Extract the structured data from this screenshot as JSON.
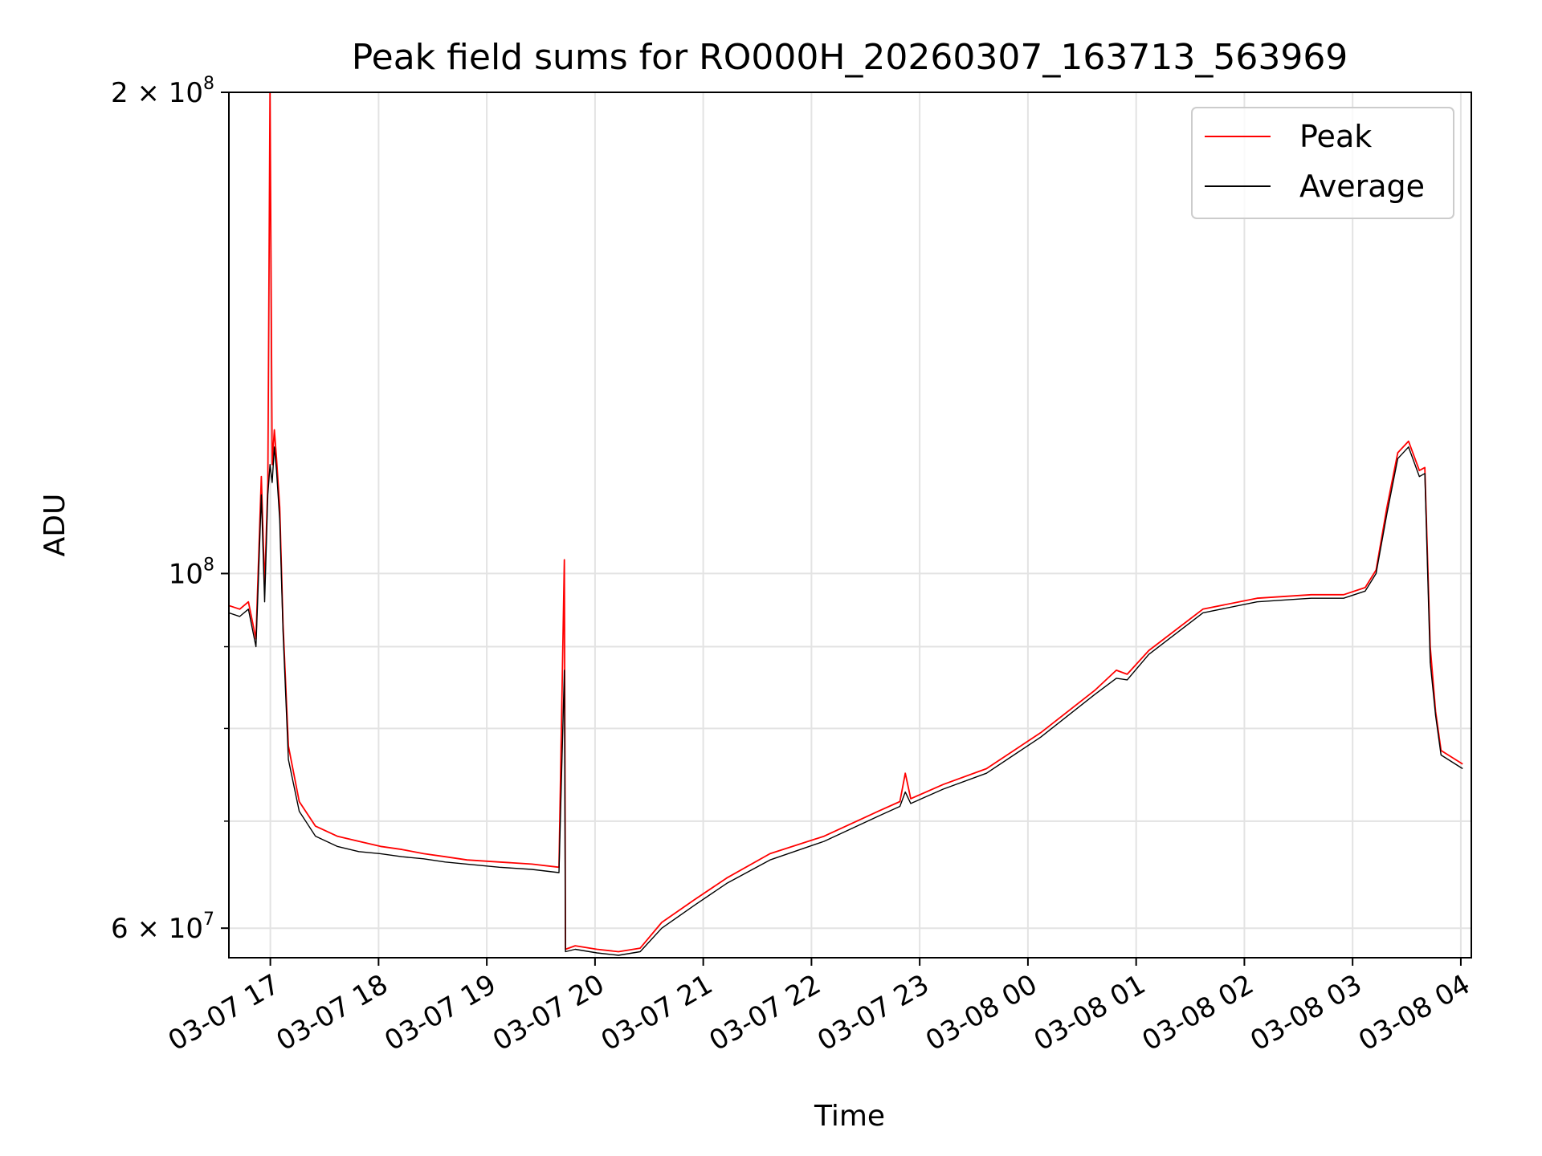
{
  "chart_data": {
    "type": "line",
    "title": "Peak field sums for RO000H_20260307_163713_563969",
    "xlabel": "Time",
    "ylabel": "ADU",
    "yscale": "log",
    "ylim": [
      57500000,
      200000000
    ],
    "xlim": [
      "2026-03-07 16:37",
      "2026-03-08 04:05"
    ],
    "grid": true,
    "legend_position": "top-right",
    "x_ticks": [
      {
        "label": "03-07 17",
        "hours": 0.383
      },
      {
        "label": "03-07 18",
        "hours": 1.383
      },
      {
        "label": "03-07 19",
        "hours": 2.383
      },
      {
        "label": "03-07 20",
        "hours": 3.383
      },
      {
        "label": "03-07 21",
        "hours": 4.383
      },
      {
        "label": "03-07 22",
        "hours": 5.383
      },
      {
        "label": "03-07 23",
        "hours": 6.383
      },
      {
        "label": "03-08 00",
        "hours": 7.383
      },
      {
        "label": "03-08 01",
        "hours": 8.383
      },
      {
        "label": "03-08 02",
        "hours": 9.383
      },
      {
        "label": "03-08 03",
        "hours": 10.383
      },
      {
        "label": "03-08 04",
        "hours": 11.383
      }
    ],
    "y_ticks": [
      {
        "base": "2 × 10",
        "exp": "8",
        "value": 200000000
      },
      {
        "base": "10",
        "exp": "8",
        "value": 100000000
      },
      {
        "base": "6 × 10",
        "exp": "7",
        "value": 60000000
      }
    ],
    "y_minor_ticks": [
      70000000,
      80000000,
      90000000
    ],
    "x_unit": "hours since 2026-03-07 16:37:13",
    "series": [
      {
        "name": "Peak",
        "color": "#ff0000",
        "x": [
          0.0,
          0.1,
          0.18,
          0.25,
          0.27,
          0.3,
          0.33,
          0.36,
          0.38,
          0.4,
          0.42,
          0.44,
          0.47,
          0.5,
          0.55,
          0.65,
          0.8,
          1.0,
          1.2,
          1.4,
          1.6,
          1.8,
          2.0,
          2.2,
          2.5,
          2.8,
          3.05,
          3.1,
          3.11,
          3.2,
          3.4,
          3.6,
          3.8,
          4.0,
          4.3,
          4.6,
          5.0,
          5.5,
          6.0,
          6.2,
          6.25,
          6.3,
          6.6,
          7.0,
          7.5,
          8.0,
          8.2,
          8.3,
          8.5,
          9.0,
          9.5,
          10.0,
          10.3,
          10.5,
          10.6,
          10.7,
          10.8,
          10.9,
          11.0,
          11.05,
          11.1,
          11.15,
          11.2,
          11.4
        ],
        "y": [
          95500000,
          95000000,
          96000000,
          91000000,
          100000000,
          115000000,
          98000000,
          114000000,
          200000000,
          117000000,
          123000000,
          118000000,
          110000000,
          93000000,
          78000000,
          72000000,
          69500000,
          68500000,
          68000000,
          67500000,
          67200000,
          66800000,
          66500000,
          66200000,
          66000000,
          65800000,
          65500000,
          102000000,
          58200000,
          58500000,
          58200000,
          58000000,
          58300000,
          60500000,
          62500000,
          64500000,
          66800000,
          68500000,
          71000000,
          72000000,
          75000000,
          72300000,
          73800000,
          75500000,
          79500000,
          84500000,
          87000000,
          86500000,
          89500000,
          95000000,
          96500000,
          97000000,
          97000000,
          98000000,
          100500000,
          110000000,
          119000000,
          121000000,
          116000000,
          116500000,
          90000000,
          82000000,
          77500000,
          76000000
        ]
      },
      {
        "name": "Average",
        "color": "#000000",
        "x": [
          0.0,
          0.1,
          0.18,
          0.25,
          0.27,
          0.3,
          0.33,
          0.36,
          0.38,
          0.4,
          0.42,
          0.44,
          0.47,
          0.5,
          0.55,
          0.65,
          0.8,
          1.0,
          1.2,
          1.4,
          1.6,
          1.8,
          2.0,
          2.2,
          2.5,
          2.8,
          3.05,
          3.1,
          3.11,
          3.2,
          3.4,
          3.6,
          3.8,
          4.0,
          4.3,
          4.6,
          5.0,
          5.5,
          6.0,
          6.2,
          6.25,
          6.3,
          6.6,
          7.0,
          7.5,
          8.0,
          8.2,
          8.3,
          8.5,
          9.0,
          9.5,
          10.0,
          10.3,
          10.5,
          10.6,
          10.7,
          10.8,
          10.9,
          11.0,
          11.05,
          11.1,
          11.15,
          11.2,
          11.4
        ],
        "y": [
          94500000,
          94000000,
          95000000,
          90000000,
          98000000,
          112000000,
          96000000,
          112000000,
          117000000,
          114000000,
          120000000,
          116000000,
          108000000,
          92000000,
          76500000,
          71000000,
          68500000,
          67500000,
          67000000,
          66800000,
          66500000,
          66300000,
          66000000,
          65800000,
          65500000,
          65300000,
          65000000,
          87000000,
          58000000,
          58200000,
          57900000,
          57700000,
          58000000,
          60000000,
          62000000,
          64000000,
          66200000,
          68000000,
          70500000,
          71500000,
          73000000,
          71800000,
          73300000,
          75000000,
          79000000,
          84000000,
          86000000,
          85800000,
          89000000,
          94500000,
          96000000,
          96500000,
          96500000,
          97500000,
          100000000,
          109000000,
          118000000,
          120000000,
          115000000,
          115500000,
          88000000,
          81500000,
          77000000,
          75500000
        ]
      }
    ]
  }
}
